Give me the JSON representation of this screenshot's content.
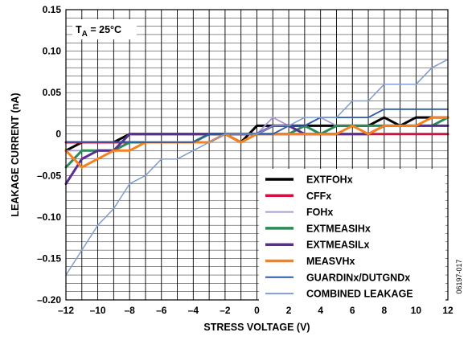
{
  "chart_data": {
    "type": "line",
    "annotation": {
      "t": "T",
      "sub": "A",
      "rest": " = 25°C"
    },
    "xlabel": "STRESS VOLTAGE (V)",
    "ylabel": "LEAKAGE CURRENT (nA)",
    "xlim": [
      -12,
      12
    ],
    "ylim": [
      -0.2,
      0.15
    ],
    "grid": true,
    "legend_position": "bottom-right",
    "figure_id": "06197-017",
    "x_ticks": [
      {
        "v": -12,
        "label": "–12"
      },
      {
        "v": -10,
        "label": "–10"
      },
      {
        "v": -8,
        "label": "–8"
      },
      {
        "v": -6,
        "label": "–6"
      },
      {
        "v": -4,
        "label": "–4"
      },
      {
        "v": -2,
        "label": "–2"
      },
      {
        "v": 0,
        "label": "0"
      },
      {
        "v": 2,
        "label": "2"
      },
      {
        "v": 4,
        "label": "4"
      },
      {
        "v": 6,
        "label": "6"
      },
      {
        "v": 8,
        "label": "8"
      },
      {
        "v": 10,
        "label": "10"
      },
      {
        "v": 12,
        "label": "12"
      }
    ],
    "y_ticks": [
      {
        "v": 0.15,
        "label": "0.15"
      },
      {
        "v": 0.1,
        "label": "0.10"
      },
      {
        "v": 0.05,
        "label": "0.05"
      },
      {
        "v": 0,
        "label": "0"
      },
      {
        "v": -0.05,
        "label": "–0.05"
      },
      {
        "v": -0.1,
        "label": "–0.10"
      },
      {
        "v": -0.15,
        "label": "–0.15"
      },
      {
        "v": -0.2,
        "label": "–0.20"
      }
    ],
    "x": [
      -12,
      -11,
      -10,
      -9,
      -8,
      -7,
      -6,
      -5,
      -4,
      -3,
      -2,
      -1,
      0,
      1,
      2,
      3,
      4,
      5,
      6,
      7,
      8,
      9,
      10,
      11,
      12
    ],
    "series": [
      {
        "name": "EXTFOHx",
        "color": "#000000",
        "width": 3,
        "values": [
          -0.02,
          -0.01,
          -0.01,
          -0.01,
          0,
          0,
          0,
          0,
          0,
          0,
          0,
          -0.01,
          0.01,
          0.01,
          0.01,
          0.01,
          0.01,
          0.01,
          0.01,
          0.01,
          0.02,
          0.01,
          0.02,
          0.02,
          0.02
        ]
      },
      {
        "name": "CFFx",
        "color": "#d3103f",
        "width": 3,
        "values": [
          -0.01,
          -0.01,
          -0.01,
          -0.01,
          -0.01,
          -0.01,
          -0.01,
          -0.01,
          -0.01,
          0,
          0,
          0,
          0,
          0,
          0,
          0,
          0,
          0,
          0,
          0,
          0,
          0,
          0,
          0,
          0
        ]
      },
      {
        "name": "FOHx",
        "color": "#a99bd3",
        "width": 1.8,
        "values": [
          -0.02,
          -0.02,
          -0.02,
          -0.02,
          -0.01,
          -0.01,
          -0.01,
          -0.01,
          -0.01,
          0,
          0,
          -0.01,
          0,
          0.02,
          0.01,
          0.01,
          0.02,
          0.01,
          0.01,
          0.01,
          0.01,
          0.01,
          0.01,
          0.01,
          0.01
        ]
      },
      {
        "name": "EXTMEASIHx",
        "color": "#2b8a57",
        "width": 3,
        "values": [
          -0.04,
          -0.02,
          -0.02,
          -0.02,
          -0.01,
          -0.01,
          -0.01,
          -0.01,
          -0.01,
          0,
          0,
          0,
          0,
          0,
          0,
          0.01,
          0,
          0.01,
          0.01,
          0.01,
          0.01,
          0.01,
          0.01,
          0.01,
          0.02
        ]
      },
      {
        "name": "EXTMEASILx",
        "color": "#5b2d90",
        "width": 3,
        "values": [
          -0.06,
          -0.03,
          -0.02,
          -0.02,
          0,
          0,
          0,
          0,
          0,
          0,
          0,
          0,
          0,
          0.01,
          0.01,
          0,
          0,
          0,
          0,
          0,
          0.01,
          0.01,
          0.01,
          0.01,
          0.01
        ]
      },
      {
        "name": "MEASVHx",
        "color": "#f5821f",
        "width": 3,
        "values": [
          -0.02,
          -0.04,
          -0.03,
          -0.02,
          -0.02,
          -0.01,
          -0.01,
          -0.01,
          -0.01,
          -0.01,
          0,
          -0.01,
          0,
          0,
          0,
          0,
          0,
          0,
          0.01,
          0,
          0.01,
          0.01,
          0.01,
          0.02,
          0.02
        ]
      },
      {
        "name": "GUARDINx/DUTGNDx",
        "color": "#2e5aa8",
        "width": 1.8,
        "values": [
          -0.01,
          -0.01,
          -0.01,
          -0.01,
          -0.01,
          -0.01,
          -0.01,
          -0.01,
          -0.01,
          0,
          0,
          0,
          0,
          0,
          0.01,
          0.01,
          0.02,
          0.02,
          0.02,
          0.02,
          0.03,
          0.03,
          0.03,
          0.03,
          0.03
        ]
      },
      {
        "name": "COMBINED LEAKAGE",
        "color": "#7f9ecf",
        "width": 1.5,
        "values": [
          -0.17,
          -0.14,
          -0.11,
          -0.09,
          -0.06,
          -0.05,
          -0.03,
          -0.03,
          -0.02,
          -0.01,
          0,
          0,
          0,
          0.01,
          0.01,
          0.02,
          0.02,
          0.02,
          0.04,
          0.04,
          0.06,
          0.06,
          0.06,
          0.08,
          0.09
        ]
      }
    ]
  }
}
